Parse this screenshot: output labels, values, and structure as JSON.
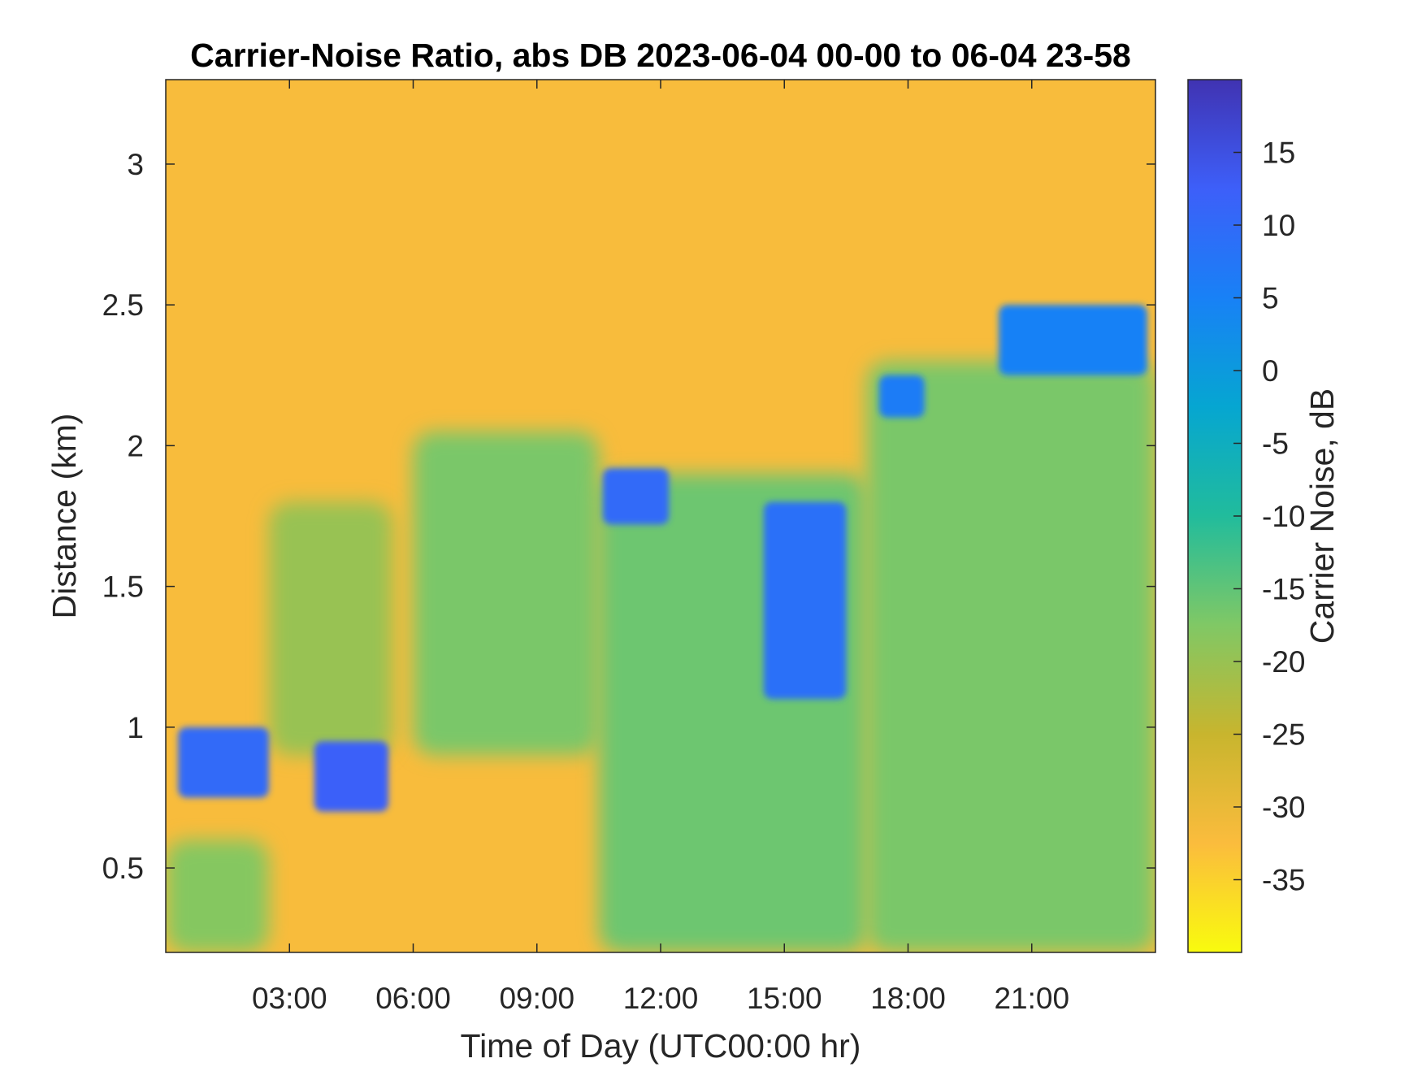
{
  "chart_data": {
    "type": "heatmap",
    "title": "Carrier-Noise Ratio, abs DB 2023-06-04 00-00 to 06-04 23-58",
    "xlabel": "Time of Day (UTC00:00 hr)",
    "ylabel": "Distance (km)",
    "colorbar_label": "Carrier Noise, dB",
    "x_ticks": [
      {
        "value": 3,
        "label": "03:00"
      },
      {
        "value": 6,
        "label": "06:00"
      },
      {
        "value": 9,
        "label": "09:00"
      },
      {
        "value": 12,
        "label": "12:00"
      },
      {
        "value": 15,
        "label": "15:00"
      },
      {
        "value": 18,
        "label": "18:00"
      },
      {
        "value": 21,
        "label": "21:00"
      }
    ],
    "y_ticks": [
      {
        "value": 0.5,
        "label": "0.5"
      },
      {
        "value": 1,
        "label": "1"
      },
      {
        "value": 1.5,
        "label": "1.5"
      },
      {
        "value": 2,
        "label": "2"
      },
      {
        "value": 2.5,
        "label": "2.5"
      },
      {
        "value": 3,
        "label": "3"
      }
    ],
    "colorbar_ticks": [
      {
        "value": 15,
        "label": "15"
      },
      {
        "value": 10,
        "label": "10"
      },
      {
        "value": 5,
        "label": "5"
      },
      {
        "value": 0,
        "label": "0"
      },
      {
        "value": -5,
        "label": "-5"
      },
      {
        "value": -10,
        "label": "-10"
      },
      {
        "value": -15,
        "label": "-15"
      },
      {
        "value": -20,
        "label": "-20"
      },
      {
        "value": -25,
        "label": "-25"
      },
      {
        "value": -30,
        "label": "-30"
      },
      {
        "value": -35,
        "label": "-35"
      }
    ],
    "xlim": [
      0,
      24
    ],
    "ylim": [
      0.2,
      3.3
    ],
    "clim": [
      -40,
      20
    ],
    "colormap": "parula (reversed: yellow = low, dark blue = high)",
    "colormap_stops": [
      "#f9fb0e",
      "#fbbc3d",
      "#c8b52e",
      "#80c865",
      "#21bc9c",
      "#06a6d1",
      "#1881f6",
      "#3d5ff9",
      "#4033b2"
    ],
    "background_value_dB": -32,
    "regions": [
      {
        "feature": "near-range signal",
        "x": [
          0,
          2.5
        ],
        "y": [
          0.2,
          0.6
        ],
        "value_dB": -18
      },
      {
        "feature": "morning signal",
        "x": [
          2.5,
          5.5
        ],
        "y": [
          0.9,
          1.8
        ],
        "value_dB": -20
      },
      {
        "feature": "daytime signal",
        "x": [
          6,
          10.5
        ],
        "y": [
          0.9,
          2.05
        ],
        "value_dB": -17
      },
      {
        "feature": "afternoon signal",
        "x": [
          10.5,
          17
        ],
        "y": [
          0.2,
          1.9
        ],
        "value_dB": -16
      },
      {
        "feature": "evening signal",
        "x": [
          17,
          24
        ],
        "y": [
          0.2,
          2.3
        ],
        "value_dB": -17
      },
      {
        "feature": "morning cloud layer",
        "x": [
          0.3,
          2.5
        ],
        "y": [
          0.75,
          1.0
        ],
        "value_dB": 10
      },
      {
        "feature": "morning cloud layer",
        "x": [
          3.6,
          5.4
        ],
        "y": [
          0.7,
          0.95
        ],
        "value_dB": 12
      },
      {
        "feature": "cloud layer",
        "x": [
          10.6,
          12.2
        ],
        "y": [
          1.72,
          1.92
        ],
        "value_dB": 10
      },
      {
        "feature": "afternoon cloud streak",
        "x": [
          14.5,
          16.5
        ],
        "y": [
          1.1,
          1.8
        ],
        "value_dB": 9
      },
      {
        "feature": "cloud layer",
        "x": [
          17.3,
          18.4
        ],
        "y": [
          2.1,
          2.25
        ],
        "value_dB": 6
      },
      {
        "feature": "evening cloud layer",
        "x": [
          20.2,
          23.8
        ],
        "y": [
          2.25,
          2.5
        ],
        "value_dB": 5
      }
    ]
  }
}
